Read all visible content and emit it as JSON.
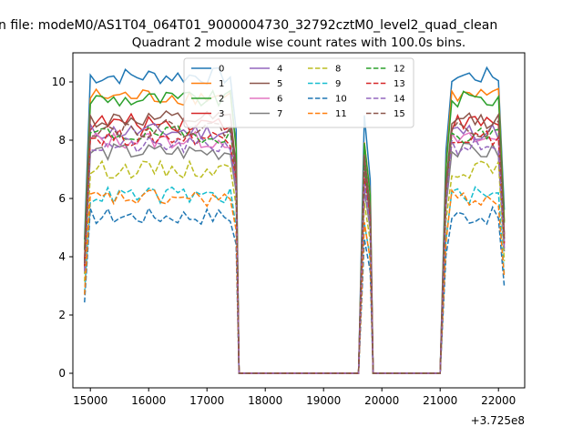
{
  "chart_data": {
    "type": "line",
    "suptitle": "n file: modeM0/AS1T04_064T01_9000004730_32792cztM0_level2_quad_clean",
    "title": "Quadrant 2 module wise count rates with 100.0s bins.",
    "xlabel": "",
    "ylabel": "",
    "x_offset_label": "+3.725e8",
    "xlim": [
      14700,
      22450
    ],
    "ylim": [
      -0.5,
      11
    ],
    "xticks": [
      15000,
      16000,
      17000,
      18000,
      19000,
      20000,
      21000,
      22000
    ],
    "xtick_labels": [
      "15000",
      "16000",
      "17000",
      "18000",
      "19000",
      "20000",
      "21000",
      "22000"
    ],
    "yticks": [
      0,
      2,
      4,
      6,
      8,
      10
    ],
    "ytick_labels": [
      "0",
      "2",
      "4",
      "6",
      "8",
      "10"
    ],
    "grid": false,
    "legend_position": "top-center",
    "legend_columns": 4,
    "segments": [
      {
        "x_start": 14900,
        "x_end": 17500
      },
      {
        "x_start": 19700,
        "x_end": 19800
      },
      {
        "x_start": 21100,
        "x_end": 22100
      }
    ],
    "zero_ranges": [
      [
        17550,
        19600
      ],
      [
        19850,
        21050
      ]
    ],
    "series": [
      {
        "name": "0",
        "color": "#1f77b4",
        "dash": "solid",
        "level": 10.2
      },
      {
        "name": "1",
        "color": "#ff7f0e",
        "dash": "solid",
        "level": 9.5
      },
      {
        "name": "2",
        "color": "#2ca02c",
        "dash": "solid",
        "level": 9.4
      },
      {
        "name": "3",
        "color": "#d62728",
        "dash": "solid",
        "level": 8.6
      },
      {
        "name": "4",
        "color": "#9467bd",
        "dash": "solid",
        "level": 8.3
      },
      {
        "name": "5",
        "color": "#8c564b",
        "dash": "solid",
        "level": 8.7
      },
      {
        "name": "6",
        "color": "#e377c2",
        "dash": "solid",
        "level": 8.0
      },
      {
        "name": "7",
        "color": "#7f7f7f",
        "dash": "solid",
        "level": 7.6
      },
      {
        "name": "8",
        "color": "#bcbd22",
        "dash": "dashed",
        "level": 7.0
      },
      {
        "name": "9",
        "color": "#17becf",
        "dash": "dashed",
        "level": 6.1
      },
      {
        "name": "10",
        "color": "#1f77b4",
        "dash": "dashed",
        "level": 5.4
      },
      {
        "name": "11",
        "color": "#ff7f0e",
        "dash": "dashed",
        "level": 6.0
      },
      {
        "name": "12",
        "color": "#2ca02c",
        "dash": "dashed",
        "level": 8.2
      },
      {
        "name": "13",
        "color": "#d62728",
        "dash": "dashed",
        "level": 8.1
      },
      {
        "name": "14",
        "color": "#9467bd",
        "dash": "dashed",
        "level": 7.8
      },
      {
        "name": "15",
        "color": "#8c564b",
        "dash": "dashed",
        "level": 8.4
      }
    ]
  }
}
